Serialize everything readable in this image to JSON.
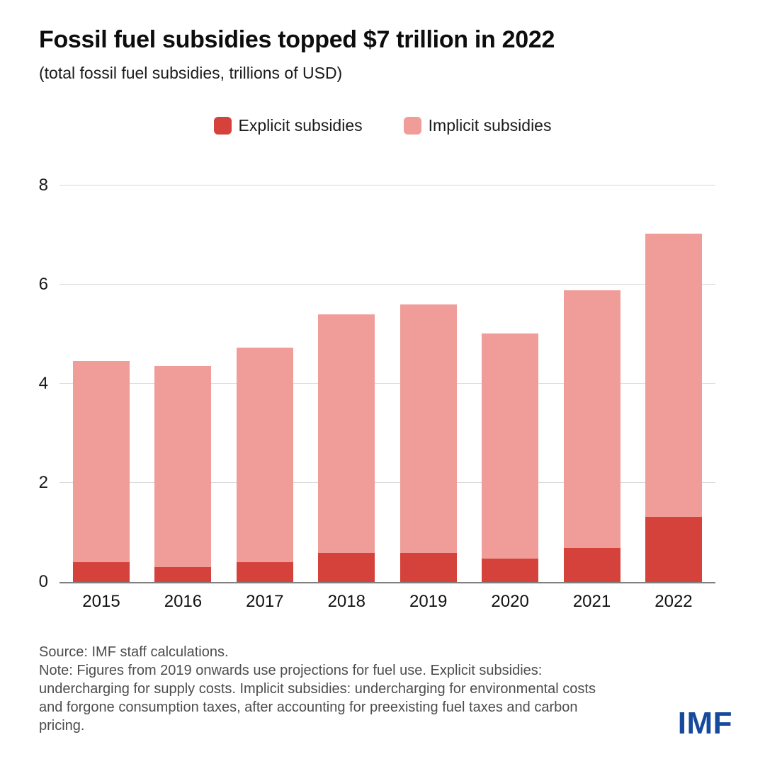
{
  "header": {
    "title": "Fossil fuel subsidies topped $7 trillion in 2022",
    "subtitle": "(total fossil fuel subsidies, trillions of USD)"
  },
  "legend": {
    "items": [
      {
        "label": "Explicit subsidies",
        "color": "#d5423b"
      },
      {
        "label": "Implicit subsidies",
        "color": "#f09d99"
      }
    ]
  },
  "chart_data": {
    "type": "bar",
    "stacked": true,
    "title": "Fossil fuel subsidies topped $7 trillion in 2022",
    "subtitle": "(total fossil fuel subsidies, trillions of USD)",
    "xlabel": "",
    "ylabel": "trillions of USD",
    "categories": [
      "2015",
      "2016",
      "2017",
      "2018",
      "2019",
      "2020",
      "2021",
      "2022"
    ],
    "series": [
      {
        "name": "Explicit subsidies",
        "color": "#d5423b",
        "values": [
          0.4,
          0.3,
          0.4,
          0.58,
          0.59,
          0.47,
          0.69,
          1.31
        ]
      },
      {
        "name": "Implicit subsidies",
        "color": "#f09d99",
        "values": [
          4.06,
          4.06,
          4.33,
          4.82,
          5.01,
          4.54,
          5.2,
          5.72
        ]
      }
    ],
    "totals": [
      4.46,
      4.36,
      4.73,
      5.4,
      5.6,
      5.01,
      5.89,
      7.03
    ],
    "ylim": [
      0,
      8
    ],
    "yticks": [
      0,
      2,
      4,
      6,
      8
    ],
    "grid": true,
    "legend_position": "top-center",
    "gridline_color": "#dadada",
    "axisline_color": "#7f7f7f"
  },
  "footer": {
    "source": "Source: IMF staff calculations.",
    "note": "Note: Figures from 2019 onwards use projections for fuel use. Explicit subsidies: undercharging for supply costs. Implicit subsidies: undercharging for environmental costs and forgone consumption taxes, after accounting for preexisting fuel taxes and carbon pricing.",
    "logo": "IMF",
    "logo_color": "#164a9c"
  }
}
